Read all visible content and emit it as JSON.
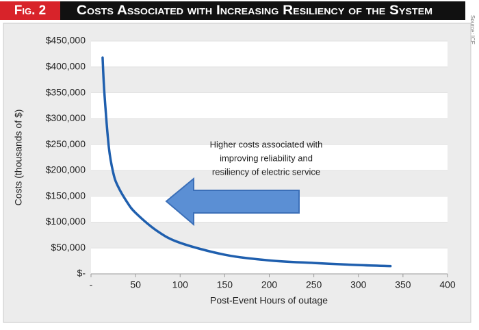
{
  "chart_data": {
    "type": "line",
    "figure_label": "Fig. 2",
    "title": "Costs Associated with Increasing Resiliency of the System",
    "source": "Source: ICF",
    "x_label": "Post-Event Hours of outage",
    "y_label": "Costs (thousands of $)",
    "annotation": [
      "Higher costs associated with",
      "improving reliability and",
      "resiliency of electric service"
    ],
    "x": [
      13,
      15,
      20,
      25,
      30,
      40,
      50,
      75,
      100,
      150,
      200,
      250,
      300,
      336
    ],
    "series": [
      {
        "color": "#1f5fae",
        "values": [
          418000,
          350000,
          245000,
          195000,
          170000,
          140000,
          118000,
          82000,
          60000,
          37000,
          26000,
          21000,
          17000,
          15000
        ]
      }
    ],
    "xlim": [
      0,
      400
    ],
    "xticks": [
      {
        "value": 0,
        "label": "-"
      },
      50,
      100,
      150,
      200,
      250,
      300,
      350,
      400
    ],
    "ylim": [
      0,
      450000
    ],
    "yticks": [
      {
        "value": 0,
        "label": "$-"
      },
      {
        "value": 50000,
        "label": "$50,000"
      },
      {
        "value": 100000,
        "label": "$100,000"
      },
      {
        "value": 150000,
        "label": "$150,000"
      },
      {
        "value": 200000,
        "label": "$200,000"
      },
      {
        "value": 250000,
        "label": "$250,000"
      },
      {
        "value": 300000,
        "label": "$300,000"
      },
      {
        "value": 350000,
        "label": "$350,000"
      },
      {
        "value": 400000,
        "label": "$400,000"
      },
      {
        "value": 450000,
        "label": "$450,000"
      }
    ],
    "grid": true
  }
}
